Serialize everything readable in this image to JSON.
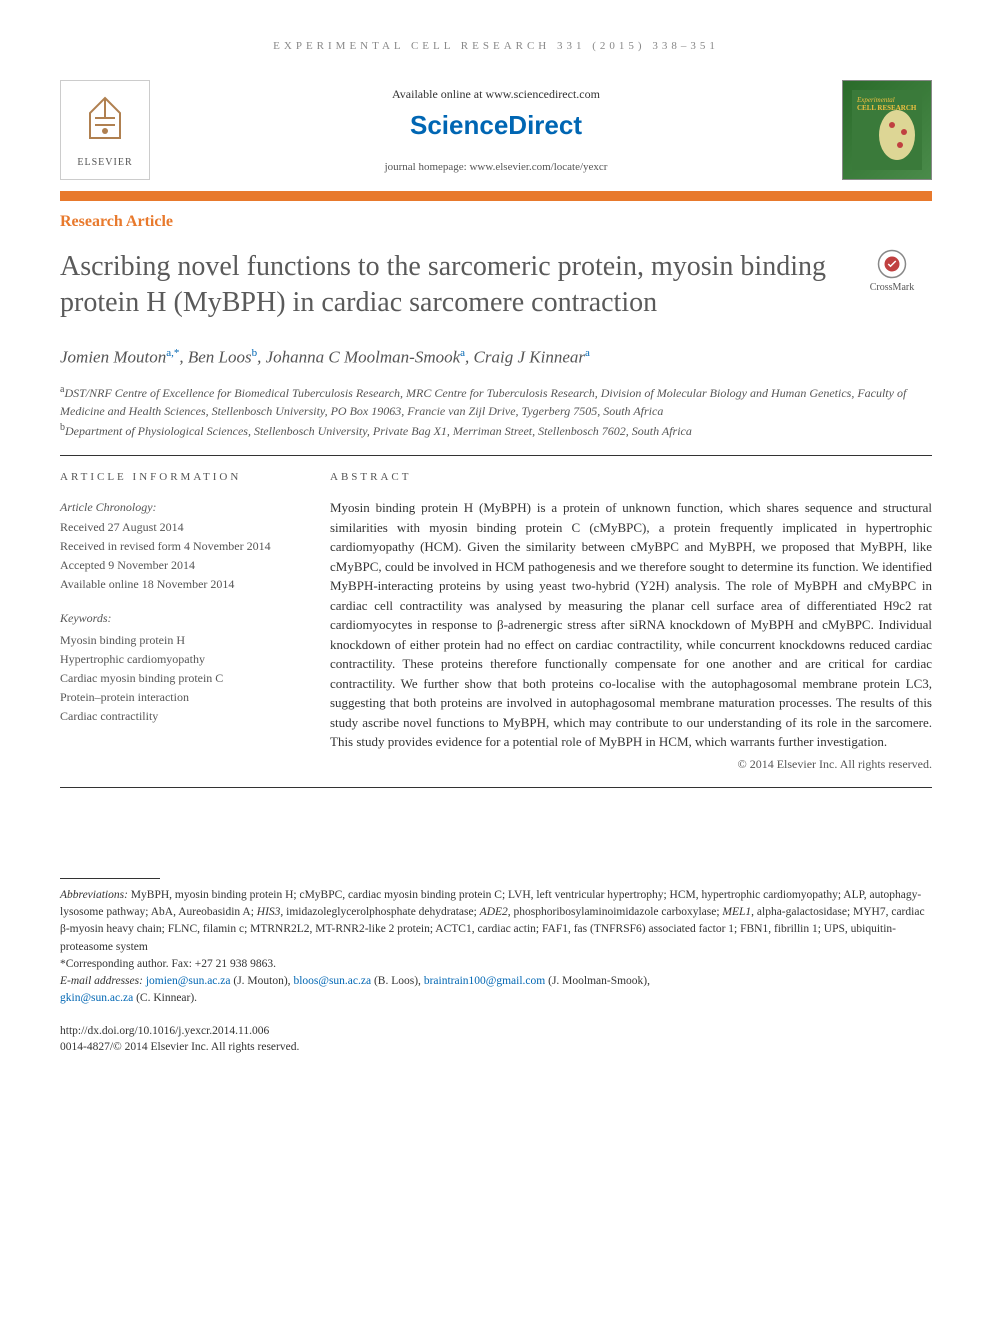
{
  "running_head": "EXPERIMENTAL CELL RESEARCH 331 (2015) 338–351",
  "header": {
    "available_online": "Available online at www.sciencedirect.com",
    "sciencedirect": "ScienceDirect",
    "journal_homepage": "journal homepage: www.elsevier.com/locate/yexcr",
    "elsevier_label": "ELSEVIER",
    "crossmark_label": "CrossMark"
  },
  "section_label": "Research Article",
  "title": "Ascribing novel functions to the sarcomeric protein, myosin binding protein H (MyBPH) in cardiac sarcomere contraction",
  "authors_html": "Jomien Mouton<sup>a,*</sup>, Ben Loos<sup>b</sup>, Johanna C Moolman-Smook<sup>a</sup>, Craig J Kinnear<sup>a</sup>",
  "affiliations": {
    "a_sup": "a",
    "a": "DST/NRF Centre of Excellence for Biomedical Tuberculosis Research, MRC Centre for Tuberculosis Research, Division of Molecular Biology and Human Genetics, Faculty of Medicine and Health Sciences, Stellenbosch University, PO Box 19063, Francie van Zijl Drive, Tygerberg 7505, South Africa",
    "b_sup": "b",
    "b": "Department of Physiological Sciences, Stellenbosch University, Private Bag X1, Merriman Street, Stellenbosch 7602, South Africa"
  },
  "article_info": {
    "header": "article information",
    "chronology_label": "Article Chronology:",
    "received": "Received 27 August 2014",
    "revised": "Received in revised form 4 November 2014",
    "accepted": "Accepted 9 November 2014",
    "online": "Available online 18 November 2014",
    "keywords_label": "Keywords:",
    "kw1": "Myosin binding protein H",
    "kw2": "Hypertrophic cardiomyopathy",
    "kw3": "Cardiac myosin binding protein C",
    "kw4": "Protein–protein interaction",
    "kw5": "Cardiac contractility"
  },
  "abstract": {
    "header": "abstract",
    "text": "Myosin binding protein H (MyBPH) is a protein of unknown function, which shares sequence and structural similarities with myosin binding protein C (cMyBPC), a protein frequently implicated in hypertrophic cardiomyopathy (HCM). Given the similarity between cMyBPC and MyBPH, we proposed that MyBPH, like cMyBPC, could be involved in HCM pathogenesis and we therefore sought to determine its function. We identified MyBPH-interacting proteins by using yeast two-hybrid (Y2H) analysis. The role of MyBPH and cMyBPC in cardiac cell contractility was analysed by measuring the planar cell surface area of differentiated H9c2 rat cardiomyocytes in response to β-adrenergic stress after siRNA knockdown of MyBPH and cMyBPC. Individual knockdown of either protein had no effect on cardiac contractility, while concurrent knockdowns reduced cardiac contractility. These proteins therefore functionally compensate for one another and are critical for cardiac contractility. We further show that both proteins co-localise with the autophagosomal membrane protein LC3, suggesting that both proteins are involved in autophagosomal membrane maturation processes. The results of this study ascribe novel functions to MyBPH, which may contribute to our understanding of its role in the sarcomere. This study provides evidence for a potential role of MyBPH in HCM, which warrants further investigation.",
    "copyright": "© 2014 Elsevier Inc. All rights reserved."
  },
  "footer": {
    "abbrev_label": "Abbreviations:",
    "abbrev": " MyBPH, myosin binding protein H; cMyBPC, cardiac myosin binding protein C; LVH, left ventricular hypertrophy; HCM, hypertrophic cardiomyopathy; ALP, autophagy-lysosome pathway; AbA, Aureobasidin A; HIS3, imidazoleglycerolphosphate dehydratase; ADE2, phosphoribosylaminoimidazole carboxylase; MEL1, alpha-galactosidase; MYH7, cardiac β-myosin heavy chain; FLNC, filamin c; MTRNR2L2, MT-RNR2-like 2 protein; ACTC1, cardiac actin; FAF1, fas (TNFRSF6) associated factor 1; FBN1, fibrillin 1; UPS, ubiquitin-proteasome system",
    "corresponding_label": "*Corresponding author.",
    "corresponding": " Fax: +27 21 938 9863.",
    "email_label": "E-mail addresses: ",
    "email1": "jomien@sun.ac.za",
    "email1_name": " (J. Mouton), ",
    "email2": "bloos@sun.ac.za",
    "email2_name": " (B. Loos), ",
    "email3": "braintrain100@gmail.com",
    "email3_name": " (J. Moolman-Smook),",
    "email4": "gkin@sun.ac.za",
    "email4_name": " (C. Kinnear).",
    "doi": "http://dx.doi.org/10.1016/j.yexcr.2014.11.006",
    "issn": "0014-4827/© 2014 Elsevier Inc. All rights reserved."
  },
  "colors": {
    "orange": "#e8792c",
    "blue": "#0066b3",
    "text": "#333333",
    "gray": "#555555"
  }
}
